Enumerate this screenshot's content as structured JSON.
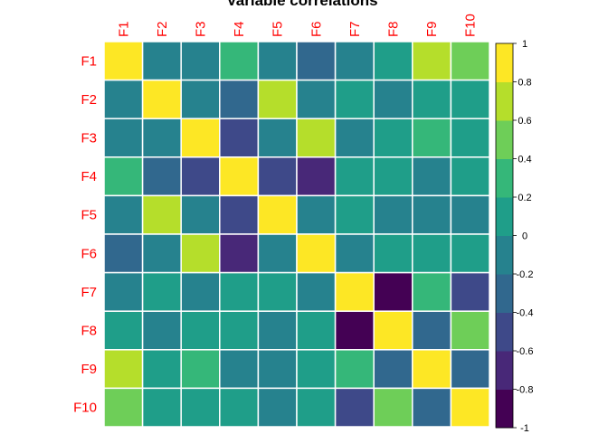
{
  "chart_data": {
    "type": "heatmap",
    "title": "Variable correlations",
    "row_labels": [
      "F1",
      "F2",
      "F3",
      "F4",
      "F5",
      "F6",
      "F7",
      "F8",
      "F9",
      "F10"
    ],
    "col_labels": [
      "F1",
      "F2",
      "F3",
      "F4",
      "F5",
      "F6",
      "F7",
      "F8",
      "F9",
      "F10"
    ],
    "label_color": "#ff0000",
    "cell_border_color": "#ffffff",
    "colormap": "viridis",
    "color_bins": [
      "#440154",
      "#482878",
      "#3e4989",
      "#31688e",
      "#26828e",
      "#1f9e89",
      "#35b779",
      "#6ece58",
      "#b5de2b",
      "#fde725"
    ],
    "value_range": [
      -1,
      1
    ],
    "colorbar_ticks": [
      "1",
      "0.8",
      "0.6",
      "0.4",
      "0.2",
      "0",
      "-0.2",
      "-0.4",
      "-0.6",
      "-0.8",
      "-1"
    ],
    "colorbar_position": "right",
    "values": [
      [
        1.0,
        -0.1,
        -0.15,
        0.3,
        -0.1,
        -0.35,
        -0.15,
        0.1,
        0.7,
        0.5
      ],
      [
        -0.1,
        1.0,
        -0.1,
        -0.35,
        0.7,
        -0.1,
        0.1,
        -0.1,
        0.1,
        0.1
      ],
      [
        -0.15,
        -0.1,
        1.0,
        -0.5,
        -0.1,
        0.7,
        -0.15,
        0.1,
        0.3,
        0.1
      ],
      [
        0.3,
        -0.35,
        -0.5,
        1.0,
        -0.5,
        -0.7,
        0.1,
        0.1,
        -0.1,
        0.1
      ],
      [
        -0.1,
        0.7,
        -0.1,
        -0.5,
        1.0,
        -0.1,
        0.1,
        -0.1,
        -0.1,
        -0.15
      ],
      [
        -0.35,
        -0.1,
        0.7,
        -0.7,
        -0.1,
        1.0,
        -0.15,
        0.1,
        0.1,
        0.1
      ],
      [
        -0.15,
        0.1,
        -0.15,
        0.1,
        0.1,
        -0.15,
        1.0,
        -0.95,
        0.3,
        -0.5
      ],
      [
        0.1,
        -0.1,
        0.1,
        0.1,
        -0.1,
        0.1,
        -0.95,
        1.0,
        -0.3,
        0.5
      ],
      [
        0.7,
        0.1,
        0.3,
        -0.1,
        -0.1,
        0.1,
        0.3,
        -0.3,
        1.0,
        -0.3
      ],
      [
        0.5,
        0.1,
        0.1,
        0.1,
        -0.15,
        0.1,
        -0.5,
        0.5,
        -0.3,
        1.0
      ]
    ]
  }
}
